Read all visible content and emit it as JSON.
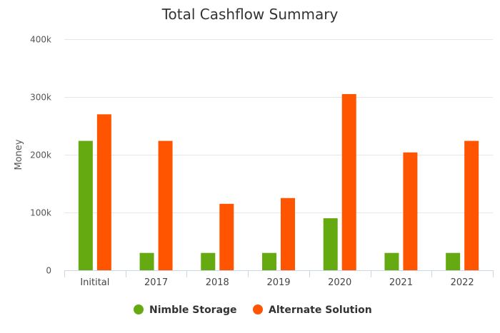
{
  "chart_data": {
    "type": "bar",
    "title": "Total Cashflow Summary",
    "xlabel": "",
    "ylabel": "Money",
    "ylim": [
      0,
      400000
    ],
    "yticks": [
      {
        "value": 0,
        "label": "0"
      },
      {
        "value": 100000,
        "label": "100k"
      },
      {
        "value": 200000,
        "label": "200k"
      },
      {
        "value": 300000,
        "label": "300k"
      },
      {
        "value": 400000,
        "label": "400k"
      }
    ],
    "categories": [
      "Initital",
      "2017",
      "2018",
      "2019",
      "2020",
      "2021",
      "2022"
    ],
    "series": [
      {
        "name": "Nimble Storage",
        "color": "#66aa11",
        "values": [
          224000,
          30000,
          30000,
          30000,
          90000,
          30000,
          30000
        ]
      },
      {
        "name": "Alternate Solution",
        "color": "#ff5500",
        "values": [
          270000,
          224000,
          115000,
          125000,
          305000,
          204000,
          224000
        ]
      }
    ],
    "grid": true,
    "legend_position": "bottom"
  }
}
